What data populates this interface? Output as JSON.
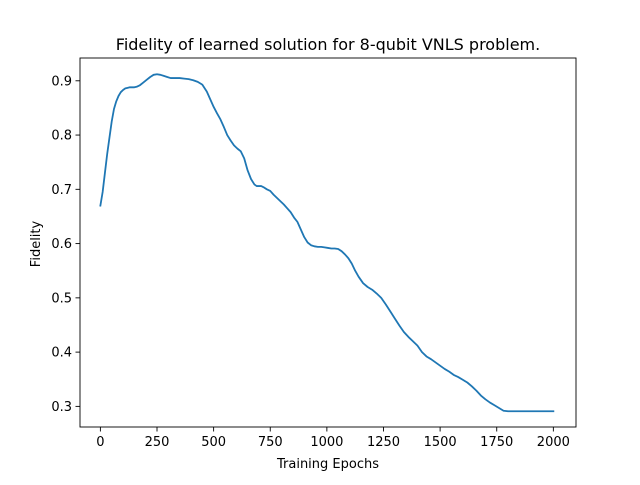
{
  "chart_data": {
    "type": "line",
    "title": "Fidelity of learned solution for 8-qubit VNLS problem.",
    "xlabel": "Training Epochs",
    "ylabel": "Fidelity",
    "xlim": [
      -90,
      2100
    ],
    "ylim": [
      0.262,
      0.942
    ],
    "xticks": [
      0,
      250,
      500,
      750,
      1000,
      1250,
      1500,
      1750,
      2000
    ],
    "xtick_labels": [
      "0",
      "250",
      "500",
      "750",
      "1000",
      "1250",
      "1500",
      "1750",
      "2000"
    ],
    "yticks": [
      0.3,
      0.4,
      0.5,
      0.6,
      0.7,
      0.8,
      0.9
    ],
    "ytick_labels": [
      "0.3",
      "0.4",
      "0.5",
      "0.6",
      "0.7",
      "0.8",
      "0.9"
    ],
    "grid": false,
    "legend": "none",
    "series": [
      {
        "color": "#1f77b4",
        "x": [
          0,
          10,
          20,
          30,
          40,
          50,
          60,
          70,
          80,
          90,
          100,
          110,
          120,
          130,
          140,
          150,
          160,
          175,
          190,
          205,
          220,
          235,
          250,
          265,
          280,
          295,
          310,
          330,
          350,
          370,
          390,
          410,
          430,
          450,
          470,
          485,
          500,
          515,
          530,
          545,
          560,
          575,
          590,
          605,
          620,
          635,
          650,
          665,
          680,
          690,
          700,
          710,
          720,
          735,
          750,
          765,
          780,
          795,
          810,
          825,
          840,
          855,
          870,
          885,
          900,
          915,
          930,
          945,
          960,
          975,
          990,
          1005,
          1020,
          1035,
          1050,
          1065,
          1080,
          1095,
          1110,
          1125,
          1140,
          1160,
          1180,
          1200,
          1220,
          1240,
          1260,
          1280,
          1300,
          1320,
          1340,
          1360,
          1380,
          1400,
          1420,
          1440,
          1460,
          1480,
          1500,
          1520,
          1540,
          1560,
          1580,
          1600,
          1620,
          1640,
          1660,
          1680,
          1700,
          1720,
          1740,
          1760,
          1780,
          1800,
          1820,
          1840,
          1860,
          1880,
          1900,
          1920,
          1940,
          1960,
          1980,
          2000
        ],
        "y": [
          0.67,
          0.695,
          0.73,
          0.765,
          0.795,
          0.825,
          0.848,
          0.862,
          0.872,
          0.879,
          0.883,
          0.886,
          0.887,
          0.888,
          0.888,
          0.888,
          0.889,
          0.892,
          0.897,
          0.902,
          0.907,
          0.911,
          0.912,
          0.911,
          0.909,
          0.907,
          0.905,
          0.905,
          0.905,
          0.904,
          0.903,
          0.901,
          0.898,
          0.893,
          0.88,
          0.866,
          0.852,
          0.84,
          0.829,
          0.815,
          0.8,
          0.79,
          0.781,
          0.775,
          0.77,
          0.757,
          0.735,
          0.719,
          0.709,
          0.706,
          0.706,
          0.706,
          0.704,
          0.7,
          0.697,
          0.69,
          0.684,
          0.678,
          0.672,
          0.665,
          0.658,
          0.648,
          0.64,
          0.626,
          0.612,
          0.602,
          0.597,
          0.595,
          0.594,
          0.594,
          0.593,
          0.592,
          0.591,
          0.591,
          0.59,
          0.586,
          0.58,
          0.573,
          0.563,
          0.55,
          0.539,
          0.527,
          0.52,
          0.515,
          0.508,
          0.5,
          0.488,
          0.475,
          0.462,
          0.449,
          0.437,
          0.428,
          0.42,
          0.412,
          0.4,
          0.392,
          0.387,
          0.381,
          0.375,
          0.369,
          0.364,
          0.358,
          0.354,
          0.349,
          0.344,
          0.337,
          0.329,
          0.32,
          0.313,
          0.307,
          0.302,
          0.297,
          0.292,
          0.291,
          0.291,
          0.291,
          0.291,
          0.291,
          0.291,
          0.291,
          0.291,
          0.291,
          0.291,
          0.291
        ]
      }
    ]
  }
}
